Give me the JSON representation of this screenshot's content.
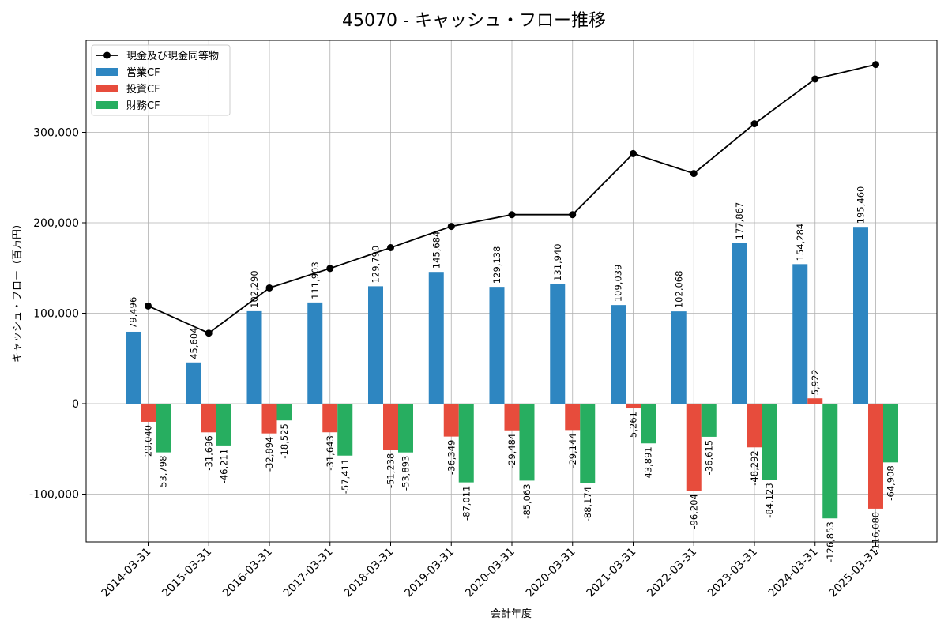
{
  "chart_data": {
    "type": "bar",
    "title": "45070 - キャッシュ・フロー推移",
    "xlabel": "会計年度",
    "ylabel": "キャッシュ・フロー（百万円）",
    "ylim": [
      -152000,
      396000
    ],
    "yticks": [
      -100000,
      0,
      100000,
      200000,
      300000
    ],
    "ytick_labels": [
      "-100,000",
      "0",
      "100,000",
      "200,000",
      "300,000"
    ],
    "grid": true,
    "legend_position": "top-left",
    "categories": [
      "2014-03-31",
      "2015-03-31",
      "2016-03-31",
      "2017-03-31",
      "2018-03-31",
      "2019-03-31",
      "2020-03-31",
      "2020-03-31",
      "2021-03-31",
      "2022-03-31",
      "2023-03-31",
      "2024-03-31",
      "2025-03-31"
    ],
    "series": [
      {
        "name": "営業CF",
        "kind": "bar",
        "color": "#2e86c1",
        "values": [
          79496,
          45604,
          102290,
          111903,
          129790,
          145684,
          129138,
          131940,
          109039,
          102068,
          177867,
          154284,
          195460
        ],
        "labels": [
          "79,496",
          "45,604",
          "102,290",
          "111,903",
          "129,790",
          "145,684",
          "129,138",
          "131,940",
          "109,039",
          "102,068",
          "177,867",
          "154,284",
          "195,460"
        ]
      },
      {
        "name": "投資CF",
        "kind": "bar",
        "color": "#e74c3c",
        "values": [
          -20040,
          -31696,
          -32894,
          -31643,
          -51238,
          -36349,
          -29484,
          -29144,
          -5261,
          -96204,
          -48292,
          5922,
          -116080
        ],
        "labels": [
          "-20,040",
          "-31,696",
          "-32,894",
          "-31,643",
          "-51,238",
          "-36,349",
          "-29,484",
          "-29,144",
          "-5,261",
          "-96,204",
          "-48,292",
          "5,922",
          "-116,080"
        ]
      },
      {
        "name": "財務CF",
        "kind": "bar",
        "color": "#27ae60",
        "values": [
          -53798,
          -46211,
          -18525,
          -57411,
          -53893,
          -87011,
          -85063,
          -88174,
          -43891,
          -36615,
          -84123,
          -126853,
          -64908
        ],
        "labels": [
          "-53,798",
          "-46,211",
          "-18,525",
          "-57,411",
          "-53,893",
          "-87,011",
          "-85,063",
          "-88,174",
          "-43,891",
          "-36,615",
          "-84,123",
          "-126,853",
          "-64,908"
        ]
      },
      {
        "name": "現金及び現金同等物",
        "kind": "line",
        "color": "#000000",
        "values": [
          108000,
          78000,
          128000,
          149500,
          172500,
          196000,
          209000,
          209000,
          276500,
          254500,
          309500,
          359000,
          375000
        ]
      }
    ]
  }
}
